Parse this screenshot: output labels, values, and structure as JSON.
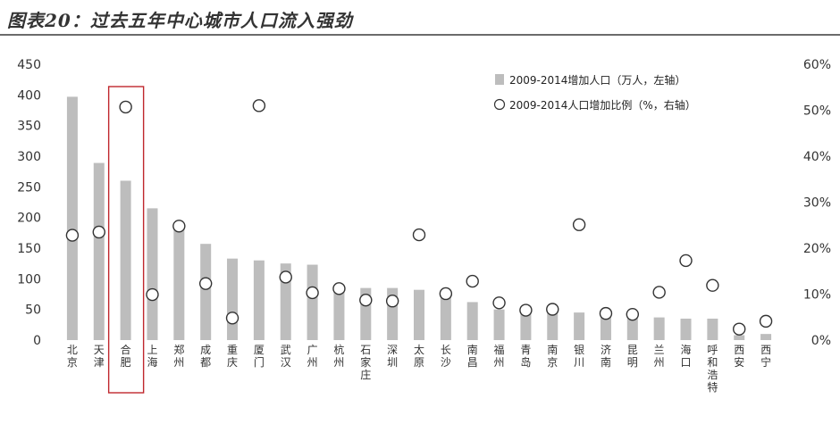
{
  "title": "图表20：过去五年中心城市人口流入强劲",
  "chart_data": {
    "type": "bar",
    "categories": [
      "北京",
      "天津",
      "合肥",
      "上海",
      "郑州",
      "成都",
      "重庆",
      "厦门",
      "武汉",
      "广州",
      "杭州",
      "石家庄",
      "深圳",
      "太原",
      "长沙",
      "南昌",
      "福州",
      "青岛",
      "南京",
      "银川",
      "济南",
      "昆明",
      "兰州",
      "海口",
      "呼和浩特",
      "西安",
      "西宁"
    ],
    "series": [
      {
        "name": "2009-2014增加人口（万人，左轴）",
        "axis": "left",
        "render": "bar",
        "color": "#bdbdbd",
        "values": [
          397,
          289,
          260,
          215,
          190,
          157,
          133,
          130,
          125,
          123,
          88,
          85,
          85,
          82,
          78,
          62,
          50,
          47,
          45,
          45,
          42,
          40,
          37,
          35,
          35,
          8,
          10
        ]
      },
      {
        "name": "2009-2014人口增加比例（%，右轴）",
        "axis": "right",
        "render": "marker",
        "color": "#ffffff",
        "values": [
          22.8,
          23.5,
          50.7,
          9.9,
          24.8,
          12.3,
          4.8,
          51.0,
          13.7,
          10.3,
          11.2,
          8.7,
          8.5,
          22.9,
          10.1,
          12.8,
          8.1,
          6.5,
          6.7,
          25.1,
          5.8,
          5.6,
          10.4,
          17.3,
          11.9,
          2.4,
          4.1
        ]
      }
    ],
    "y_left": {
      "min": 0,
      "max": 450,
      "ticks": [
        "0",
        "50",
        "100",
        "150",
        "200",
        "250",
        "300",
        "350",
        "400",
        "450"
      ]
    },
    "y_right": {
      "min": 0,
      "max": 60,
      "ticks": [
        "0%",
        "10%",
        "20%",
        "30%",
        "40%",
        "50%",
        "60%"
      ]
    },
    "legend_position": "top-right",
    "highlight_category": "合肥",
    "highlight_color": "#c0272d",
    "grid": false
  }
}
